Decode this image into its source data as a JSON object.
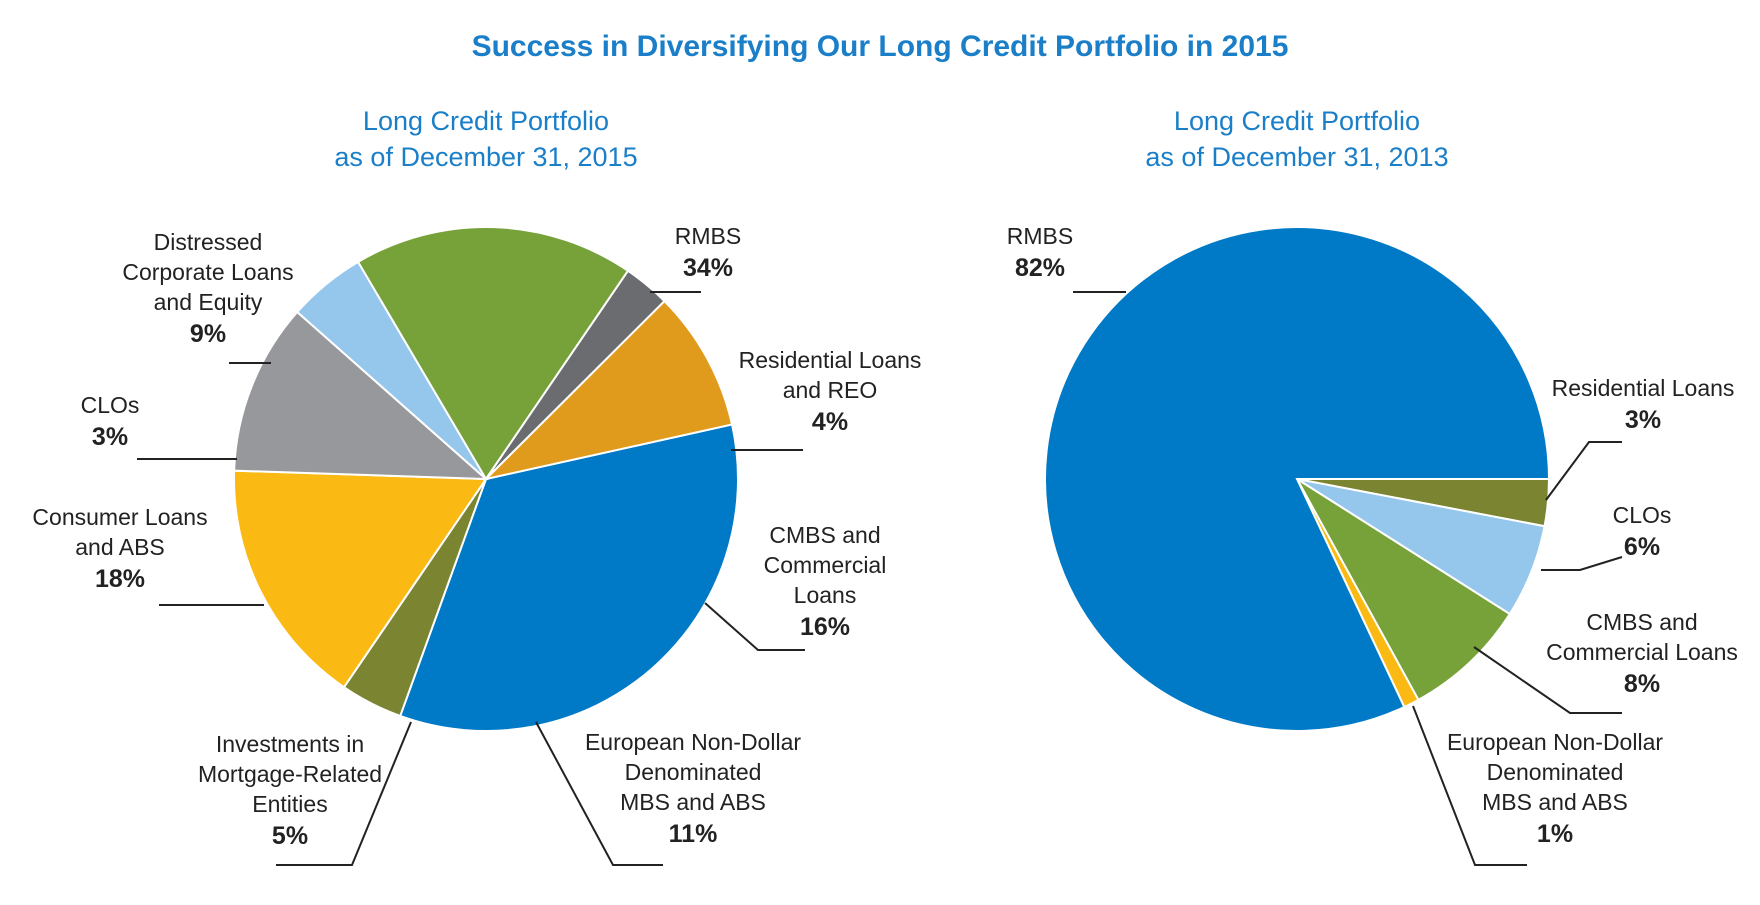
{
  "title": "Success in Diversifying Our Long Credit Portfolio in 2015",
  "chart_data": [
    {
      "type": "pie",
      "title_lines": [
        "Long Credit Portfolio",
        "as of December 31, 2015"
      ],
      "slices": [
        {
          "label_lines": [
            "RMBS"
          ],
          "value": 34,
          "value_label": "34%",
          "color": "#0079c6"
        },
        {
          "label_lines": [
            "Residential Loans",
            "and REO"
          ],
          "value": 4,
          "value_label": "4%",
          "color": "#7a8431"
        },
        {
          "label_lines": [
            "CMBS and",
            "Commercial",
            "Loans"
          ],
          "value": 16,
          "value_label": "16%",
          "color": "#fbb913"
        },
        {
          "label_lines": [
            "European Non-Dollar",
            "Denominated",
            "MBS and ABS"
          ],
          "value": 11,
          "value_label": "11%",
          "color": "#97989b"
        },
        {
          "label_lines": [
            "Investments in",
            "Mortgage-Related",
            "Entities"
          ],
          "value": 5,
          "value_label": "5%",
          "color": "#95c6ec"
        },
        {
          "label_lines": [
            "Consumer Loans",
            "and ABS"
          ],
          "value": 18,
          "value_label": "18%",
          "color": "#77a23a"
        },
        {
          "label_lines": [
            "CLOs"
          ],
          "value": 3,
          "value_label": "3%",
          "color": "#6b6c70"
        },
        {
          "label_lines": [
            "Distressed",
            "Corporate Loans",
            "and Equity"
          ],
          "value": 9,
          "value_label": "9%",
          "color": "#e09b1c"
        }
      ]
    },
    {
      "type": "pie",
      "title_lines": [
        "Long Credit Portfolio",
        "as of December 31, 2013"
      ],
      "slices": [
        {
          "label_lines": [
            "Residential Loans"
          ],
          "value": 3,
          "value_label": "3%",
          "color": "#7a8431"
        },
        {
          "label_lines": [
            "CLOs"
          ],
          "value": 6,
          "value_label": "6%",
          "color": "#95c6ec"
        },
        {
          "label_lines": [
            "CMBS and",
            "Commercial Loans"
          ],
          "value": 8,
          "value_label": "8%",
          "color": "#77a23a"
        },
        {
          "label_lines": [
            "European Non-Dollar",
            "Denominated",
            "MBS and ABS"
          ],
          "value": 1,
          "value_label": "1%",
          "color": "#fbb913"
        },
        {
          "label_lines": [
            "RMBS"
          ],
          "value": 82,
          "value_label": "82%",
          "color": "#0079c6"
        }
      ]
    }
  ]
}
